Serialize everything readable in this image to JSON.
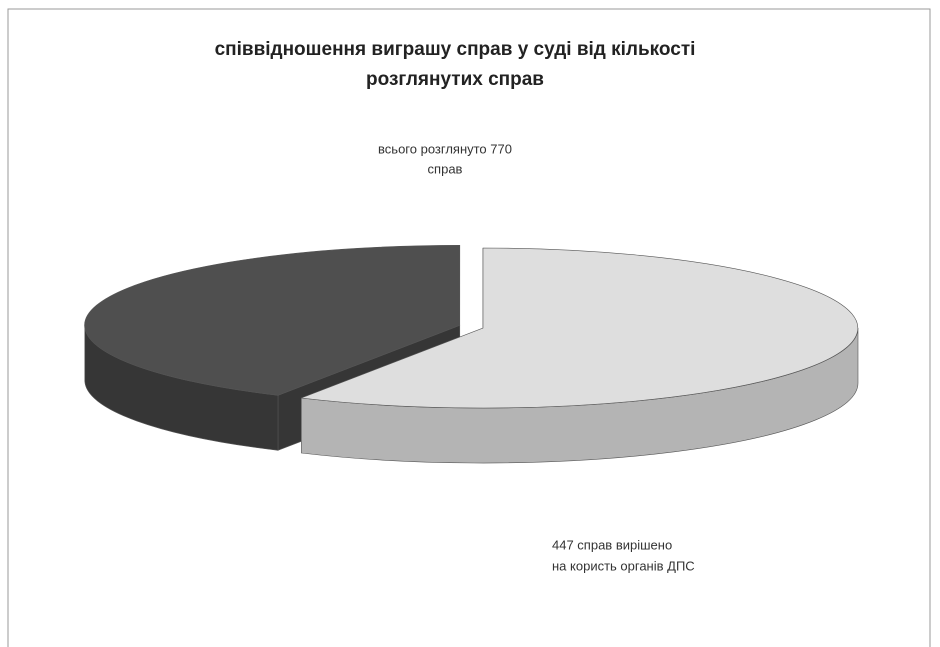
{
  "chart_data": {
    "type": "pie3d",
    "title": [
      "співвідношення виграшу справ у суді від кількості",
      "розглянутих справ"
    ],
    "annotations": [
      [
        "всього розглянуто  770",
        "справ"
      ],
      [
        "447 справ вирішено",
        "на користь органів ДПС"
      ]
    ],
    "values": [
      447,
      323
    ],
    "colors": [
      "#dedede",
      "#4f4f4f"
    ],
    "side_colors": [
      "#b4b4b4",
      "#363636"
    ],
    "explode": [
      0,
      1
    ]
  }
}
